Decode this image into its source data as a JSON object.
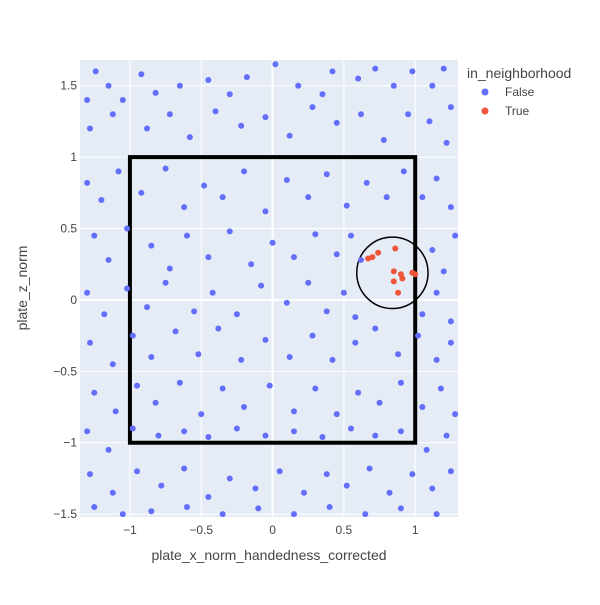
{
  "chart_data": {
    "type": "scatter",
    "title": "",
    "xlabel": "plate_x_norm_handedness_corrected",
    "ylabel": "plate_z_norm",
    "xlim": [
      -1.35,
      1.3
    ],
    "ylim": [
      -1.52,
      1.68
    ],
    "x_ticks": [
      -1,
      -0.5,
      0,
      0.5,
      1
    ],
    "x_tick_labels": [
      "−1",
      "−0.5",
      "0",
      "0.5",
      "1"
    ],
    "y_ticks": [
      -1.5,
      -1,
      -0.5,
      0,
      0.5,
      1,
      1.5
    ],
    "y_tick_labels": [
      "−1.5",
      "−1",
      "−0.5",
      "0",
      "0.5",
      "1",
      "1.5"
    ],
    "grid": true,
    "legend": {
      "title": "in_neighborhood",
      "placement": "right",
      "entries": [
        {
          "label": "False",
          "color": "#636efa"
        },
        {
          "label": "True",
          "color": "#ef553b"
        }
      ]
    },
    "strike_zone": {
      "x0": -1,
      "x1": 1,
      "y0": -1,
      "y1": 1
    },
    "neighborhood_circle": {
      "cx": 0.84,
      "cy": 0.19,
      "r": 0.25
    },
    "series": [
      {
        "name": "False",
        "color": "#636efa",
        "points": [
          [
            -1.3,
            1.4
          ],
          [
            -1.24,
            1.6
          ],
          [
            -1.15,
            1.5
          ],
          [
            -1.05,
            1.4
          ],
          [
            -0.92,
            1.58
          ],
          [
            -0.82,
            1.45
          ],
          [
            -0.65,
            1.5
          ],
          [
            -0.45,
            1.54
          ],
          [
            -0.3,
            1.44
          ],
          [
            -0.18,
            1.56
          ],
          [
            0.02,
            1.65
          ],
          [
            0.18,
            1.5
          ],
          [
            0.35,
            1.44
          ],
          [
            0.42,
            1.6
          ],
          [
            0.6,
            1.55
          ],
          [
            0.72,
            1.62
          ],
          [
            0.85,
            1.5
          ],
          [
            0.98,
            1.6
          ],
          [
            1.12,
            1.5
          ],
          [
            1.2,
            1.62
          ],
          [
            1.25,
            1.35
          ],
          [
            -1.28,
            1.2
          ],
          [
            -1.12,
            1.3
          ],
          [
            -0.88,
            1.2
          ],
          [
            -0.72,
            1.3
          ],
          [
            -0.58,
            1.14
          ],
          [
            -0.4,
            1.32
          ],
          [
            -0.22,
            1.22
          ],
          [
            -0.05,
            1.28
          ],
          [
            0.12,
            1.15
          ],
          [
            0.28,
            1.35
          ],
          [
            0.45,
            1.24
          ],
          [
            0.62,
            1.3
          ],
          [
            0.78,
            1.12
          ],
          [
            0.95,
            1.3
          ],
          [
            1.1,
            1.25
          ],
          [
            1.22,
            1.1
          ],
          [
            -1.3,
            0.82
          ],
          [
            -1.2,
            0.7
          ],
          [
            -1.08,
            0.9
          ],
          [
            -0.92,
            0.75
          ],
          [
            -0.75,
            0.92
          ],
          [
            -0.62,
            0.65
          ],
          [
            -0.48,
            0.8
          ],
          [
            -0.35,
            0.72
          ],
          [
            -0.2,
            0.9
          ],
          [
            -0.05,
            0.62
          ],
          [
            0.1,
            0.84
          ],
          [
            0.25,
            0.72
          ],
          [
            0.38,
            0.88
          ],
          [
            0.52,
            0.66
          ],
          [
            0.66,
            0.82
          ],
          [
            0.8,
            0.72
          ],
          [
            0.92,
            0.9
          ],
          [
            1.05,
            0.72
          ],
          [
            1.15,
            0.85
          ],
          [
            1.25,
            0.65
          ],
          [
            -1.25,
            0.45
          ],
          [
            -1.15,
            0.28
          ],
          [
            -1.02,
            0.5
          ],
          [
            -0.85,
            0.38
          ],
          [
            -0.72,
            0.22
          ],
          [
            -0.6,
            0.45
          ],
          [
            -0.45,
            0.3
          ],
          [
            -0.3,
            0.48
          ],
          [
            -0.15,
            0.25
          ],
          [
            0.0,
            0.4
          ],
          [
            0.15,
            0.3
          ],
          [
            0.3,
            0.46
          ],
          [
            0.45,
            0.32
          ],
          [
            0.55,
            0.45
          ],
          [
            0.62,
            0.28
          ],
          [
            1.12,
            0.35
          ],
          [
            1.2,
            0.2
          ],
          [
            1.28,
            0.45
          ],
          [
            -1.3,
            0.05
          ],
          [
            -1.18,
            -0.1
          ],
          [
            -1.02,
            0.08
          ],
          [
            -0.88,
            -0.05
          ],
          [
            -0.75,
            0.12
          ],
          [
            -0.55,
            -0.08
          ],
          [
            -0.42,
            0.05
          ],
          [
            -0.25,
            -0.1
          ],
          [
            -0.08,
            0.1
          ],
          [
            0.1,
            -0.02
          ],
          [
            0.25,
            0.12
          ],
          [
            0.38,
            -0.08
          ],
          [
            0.5,
            0.05
          ],
          [
            0.58,
            -0.12
          ],
          [
            1.05,
            -0.1
          ],
          [
            1.15,
            0.05
          ],
          [
            1.25,
            -0.15
          ],
          [
            -1.28,
            -0.3
          ],
          [
            -1.12,
            -0.45
          ],
          [
            -0.98,
            -0.25
          ],
          [
            -0.85,
            -0.4
          ],
          [
            -0.68,
            -0.22
          ],
          [
            -0.52,
            -0.38
          ],
          [
            -0.38,
            -0.2
          ],
          [
            -0.22,
            -0.42
          ],
          [
            -0.05,
            -0.28
          ],
          [
            0.12,
            -0.4
          ],
          [
            0.28,
            -0.25
          ],
          [
            0.42,
            -0.42
          ],
          [
            0.58,
            -0.3
          ],
          [
            0.72,
            -0.2
          ],
          [
            0.88,
            -0.38
          ],
          [
            1.02,
            -0.25
          ],
          [
            1.15,
            -0.42
          ],
          [
            1.25,
            -0.3
          ],
          [
            -1.25,
            -0.65
          ],
          [
            -1.1,
            -0.78
          ],
          [
            -0.95,
            -0.6
          ],
          [
            -0.82,
            -0.72
          ],
          [
            -0.65,
            -0.58
          ],
          [
            -0.5,
            -0.8
          ],
          [
            -0.35,
            -0.62
          ],
          [
            -0.2,
            -0.75
          ],
          [
            -0.02,
            -0.6
          ],
          [
            0.15,
            -0.78
          ],
          [
            0.3,
            -0.62
          ],
          [
            0.45,
            -0.8
          ],
          [
            0.6,
            -0.65
          ],
          [
            0.75,
            -0.72
          ],
          [
            0.9,
            -0.58
          ],
          [
            1.05,
            -0.75
          ],
          [
            1.18,
            -0.62
          ],
          [
            1.28,
            -0.8
          ],
          [
            -1.3,
            -0.92
          ],
          [
            -1.15,
            -1.05
          ],
          [
            -0.98,
            -0.9
          ],
          [
            -0.8,
            -0.95
          ],
          [
            -0.62,
            -0.92
          ],
          [
            -0.45,
            -0.96
          ],
          [
            -0.25,
            -0.9
          ],
          [
            -0.05,
            -0.95
          ],
          [
            0.15,
            -0.92
          ],
          [
            0.35,
            -0.96
          ],
          [
            0.55,
            -0.9
          ],
          [
            0.72,
            -0.95
          ],
          [
            0.9,
            -0.92
          ],
          [
            1.08,
            -1.05
          ],
          [
            1.22,
            -0.95
          ],
          [
            -1.28,
            -1.22
          ],
          [
            -1.12,
            -1.35
          ],
          [
            -0.95,
            -1.2
          ],
          [
            -0.78,
            -1.3
          ],
          [
            -0.62,
            -1.18
          ],
          [
            -0.45,
            -1.38
          ],
          [
            -0.3,
            -1.25
          ],
          [
            -0.12,
            -1.32
          ],
          [
            0.05,
            -1.2
          ],
          [
            0.22,
            -1.35
          ],
          [
            0.38,
            -1.22
          ],
          [
            0.52,
            -1.3
          ],
          [
            0.68,
            -1.18
          ],
          [
            0.82,
            -1.35
          ],
          [
            0.98,
            -1.22
          ],
          [
            1.12,
            -1.32
          ],
          [
            1.25,
            -1.2
          ],
          [
            -1.25,
            -1.45
          ],
          [
            -1.05,
            -1.5
          ],
          [
            -0.85,
            -1.48
          ],
          [
            -0.6,
            -1.45
          ],
          [
            -0.35,
            -1.5
          ],
          [
            -0.1,
            -1.46
          ],
          [
            0.15,
            -1.5
          ],
          [
            0.4,
            -1.45
          ],
          [
            0.65,
            -1.5
          ],
          [
            0.9,
            -1.46
          ],
          [
            1.15,
            -1.5
          ]
        ]
      },
      {
        "name": "True",
        "color": "#ef553b",
        "points": [
          [
            0.7,
            0.3
          ],
          [
            0.74,
            0.33
          ],
          [
            0.86,
            0.36
          ],
          [
            0.85,
            0.2
          ],
          [
            0.85,
            0.13
          ],
          [
            0.9,
            0.18
          ],
          [
            0.91,
            0.15
          ],
          [
            0.98,
            0.19
          ],
          [
            1.0,
            0.18
          ],
          [
            0.88,
            0.05
          ],
          [
            0.67,
            0.29
          ]
        ]
      }
    ]
  }
}
